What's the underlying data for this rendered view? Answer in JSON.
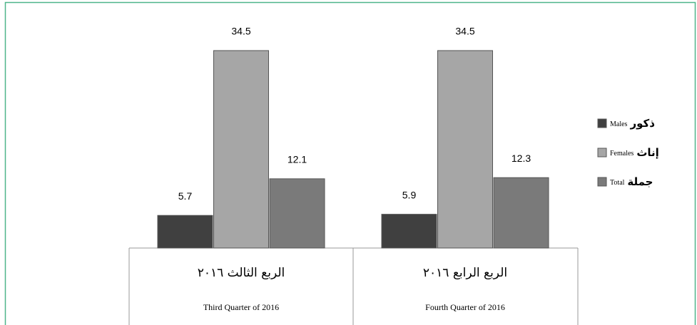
{
  "chart_data": {
    "type": "bar",
    "categories": [
      "الربع الثالث ٢٠١٦",
      "الربع الرابع ٢٠١٦"
    ],
    "categories_en": [
      "Third Quarter of  2016",
      "Fourth Quarter of  2016"
    ],
    "series": [
      {
        "name": "Males",
        "name_ar": "ذكور",
        "color": "#404040",
        "values": [
          5.7,
          5.9
        ]
      },
      {
        "name": "Females",
        "name_ar": "إناث",
        "color": "#a6a6a6",
        "values": [
          34.5,
          34.5
        ]
      },
      {
        "name": "Total",
        "name_ar": "جملة",
        "color": "#7a7a7a",
        "values": [
          12.1,
          12.3
        ]
      }
    ],
    "legend": "right"
  }
}
